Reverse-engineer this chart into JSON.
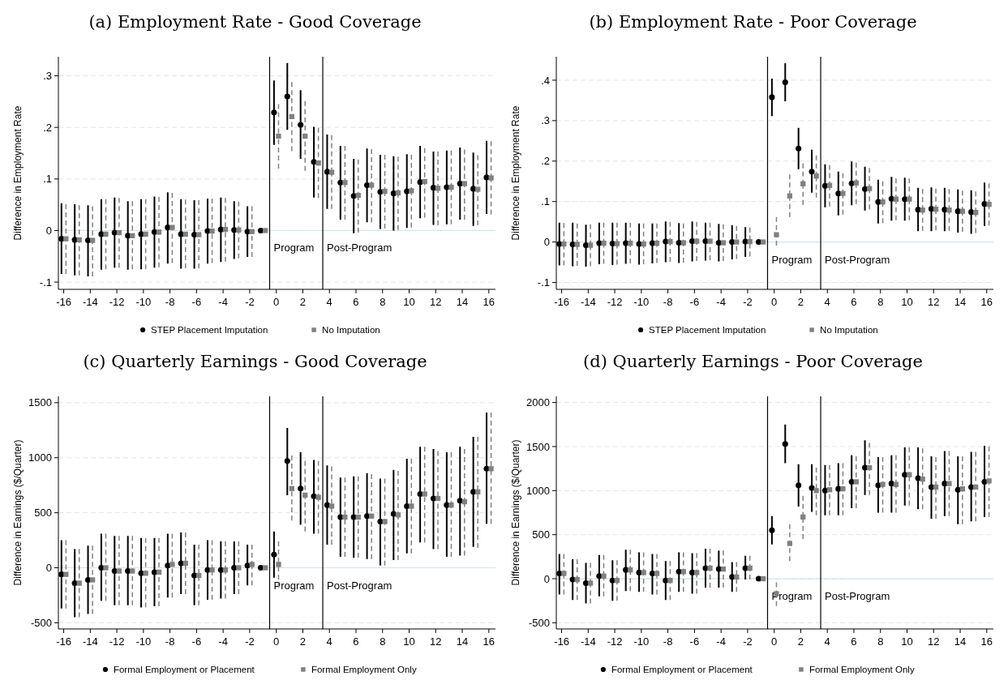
{
  "chart_data": [
    {
      "type": "scatter",
      "title": "(a) Employment Rate - Good Coverage",
      "ylabel": "Difference in Employment Rate",
      "xlim": [
        -16.4,
        16.5
      ],
      "xticks": [
        -16,
        -14,
        -12,
        -10,
        -8,
        -6,
        -4,
        -2,
        0,
        2,
        4,
        6,
        8,
        10,
        12,
        14,
        16
      ],
      "ylim": [
        -0.114,
        0.337
      ],
      "yticks": [
        {
          "value": -0.1,
          "label": "-.1"
        },
        0,
        {
          "value": 0.1,
          "label": ".1"
        },
        {
          "value": 0.2,
          "label": ".2"
        },
        {
          "value": 0.3,
          "label": ".3"
        }
      ],
      "grid": "y",
      "legend": "bottom",
      "ref_lines": [
        {
          "axis": "y",
          "value": 0,
          "color": "#d6e4ec"
        },
        {
          "axis": "x",
          "value": -0.5,
          "label": "Program",
          "color": "#000000"
        },
        {
          "axis": "x",
          "value": 3.5,
          "label": "Post-Program",
          "color": "#000000"
        }
      ],
      "series": [
        {
          "name": "STEP Placement Imputation",
          "color": "#000000",
          "marker": "circle",
          "line_style": "solid",
          "x": [
            -16.17,
            -15.17,
            -14.17,
            -13.17,
            -12.17,
            -11.17,
            -10.17,
            -9.17,
            -8.17,
            -7.17,
            -6.17,
            -5.17,
            -4.17,
            -3.17,
            -2.17,
            -1.17,
            -0.17,
            0.83,
            1.83,
            2.83,
            3.83,
            4.83,
            5.83,
            6.83,
            7.83,
            8.83,
            9.83,
            10.83,
            11.83,
            12.83,
            13.83,
            14.83,
            15.83
          ],
          "values": [
            -0.016,
            -0.018,
            -0.019,
            -0.007,
            -0.004,
            -0.01,
            -0.007,
            -0.003,
            0.006,
            -0.007,
            -0.008,
            -0.001,
            0.002,
            0.001,
            -0.002,
            0,
            0.229,
            0.26,
            0.205,
            0.133,
            0.114,
            0.093,
            0.067,
            0.088,
            0.075,
            0.072,
            0.076,
            0.094,
            0.083,
            0.084,
            0.091,
            0.081,
            0.103
          ],
          "errors": [
            [
              -0.084,
              0.053
            ],
            [
              -0.087,
              0.051
            ],
            [
              -0.089,
              0.049
            ],
            [
              -0.076,
              0.061
            ],
            [
              -0.072,
              0.064
            ],
            [
              -0.076,
              0.057
            ],
            [
              -0.075,
              0.061
            ],
            [
              -0.072,
              0.066
            ],
            [
              -0.064,
              0.074
            ],
            [
              -0.074,
              0.061
            ],
            [
              -0.074,
              0.059
            ],
            [
              -0.064,
              0.062
            ],
            [
              -0.061,
              0.064
            ],
            [
              -0.055,
              0.057
            ],
            [
              -0.051,
              0.047
            ],
            null,
            [
              0.166,
              0.291
            ],
            [
              0.195,
              0.325
            ],
            [
              0.139,
              0.272
            ],
            [
              0.064,
              0.201
            ],
            [
              0.042,
              0.186
            ],
            [
              0.021,
              0.164
            ],
            [
              -0.005,
              0.139
            ],
            [
              0.016,
              0.159
            ],
            [
              0.003,
              0.147
            ],
            [
              0,
              0.144
            ],
            [
              0.005,
              0.148
            ],
            [
              0.024,
              0.164
            ],
            [
              0.011,
              0.153
            ],
            [
              0.012,
              0.155
            ],
            [
              0.021,
              0.161
            ],
            [
              0.009,
              0.151
            ],
            [
              0.032,
              0.174
            ]
          ]
        },
        {
          "name": "No Imputation",
          "color": "#808080",
          "marker": "square",
          "line_style": "dashed",
          "x": [
            -15.83,
            -14.83,
            -13.83,
            -12.83,
            -11.83,
            -10.83,
            -9.83,
            -8.83,
            -7.83,
            -6.83,
            -5.83,
            -4.83,
            -3.83,
            -2.83,
            -1.83,
            -0.83,
            0.17,
            1.17,
            2.17,
            3.17,
            4.17,
            5.17,
            6.17,
            7.17,
            8.17,
            9.17,
            10.17,
            11.17,
            12.17,
            13.17,
            14.17,
            15.17,
            16.17
          ],
          "values": [
            -0.016,
            -0.018,
            -0.019,
            -0.007,
            -0.004,
            -0.01,
            -0.007,
            -0.003,
            0.006,
            -0.007,
            -0.008,
            -0.001,
            0.002,
            0.001,
            -0.002,
            0,
            0.183,
            0.221,
            0.183,
            0.131,
            0.113,
            0.093,
            0.068,
            0.088,
            0.076,
            0.073,
            0.077,
            0.095,
            0.082,
            0.084,
            0.091,
            0.08,
            0.102
          ],
          "errors": [
            [
              -0.084,
              0.051
            ],
            [
              -0.087,
              0.049
            ],
            [
              -0.089,
              0.047
            ],
            [
              -0.075,
              0.061
            ],
            [
              -0.072,
              0.063
            ],
            [
              -0.075,
              0.057
            ],
            [
              -0.075,
              0.061
            ],
            [
              -0.071,
              0.065
            ],
            [
              -0.063,
              0.073
            ],
            [
              -0.073,
              0.06
            ],
            [
              -0.073,
              0.059
            ],
            [
              -0.063,
              0.062
            ],
            [
              -0.06,
              0.063
            ],
            [
              -0.054,
              0.056
            ],
            [
              -0.051,
              0.047
            ],
            null,
            [
              0.12,
              0.245
            ],
            [
              0.154,
              0.288
            ],
            [
              0.116,
              0.251
            ],
            [
              0.063,
              0.199
            ],
            [
              0.042,
              0.185
            ],
            [
              0.021,
              0.164
            ],
            [
              -0.004,
              0.138
            ],
            [
              0.016,
              0.158
            ],
            [
              0.004,
              0.147
            ],
            [
              0.001,
              0.143
            ],
            [
              0.006,
              0.147
            ],
            [
              0.025,
              0.16
            ],
            [
              0.01,
              0.153
            ],
            [
              0.012,
              0.155
            ],
            [
              0.021,
              0.157
            ],
            [
              0.01,
              0.146
            ],
            [
              0.031,
              0.173
            ]
          ]
        }
      ]
    },
    {
      "type": "scatter",
      "title": "(b) Employment Rate - Poor Coverage",
      "ylabel": "Difference in Employment Rate",
      "xlim": [
        -16.4,
        16.5
      ],
      "xticks": [
        -16,
        -14,
        -12,
        -10,
        -8,
        -6,
        -4,
        -2,
        0,
        2,
        4,
        6,
        8,
        10,
        12,
        14,
        16
      ],
      "ylim": [
        -0.117,
        0.458
      ],
      "yticks": [
        {
          "value": -0.1,
          "label": "-.1"
        },
        0,
        {
          "value": 0.1,
          "label": ".1"
        },
        {
          "value": 0.2,
          "label": ".2"
        },
        {
          "value": 0.3,
          "label": ".3"
        },
        {
          "value": 0.4,
          "label": ".4"
        }
      ],
      "grid": "y",
      "legend": "bottom",
      "ref_lines": [
        {
          "axis": "y",
          "value": 0,
          "color": "#d6e4ec"
        },
        {
          "axis": "x",
          "value": -0.5,
          "label": "Program",
          "color": "#000000"
        },
        {
          "axis": "x",
          "value": 3.5,
          "label": "Post-Program",
          "color": "#000000"
        }
      ],
      "series": [
        {
          "name": "STEP Placement Imputation",
          "color": "#000000",
          "marker": "circle",
          "line_style": "solid",
          "x": [
            -16.17,
            -15.17,
            -14.17,
            -13.17,
            -12.17,
            -11.17,
            -10.17,
            -9.17,
            -8.17,
            -7.17,
            -6.17,
            -5.17,
            -4.17,
            -3.17,
            -2.17,
            -1.17,
            -0.17,
            0.83,
            1.83,
            2.83,
            3.83,
            4.83,
            5.83,
            6.83,
            7.83,
            8.83,
            9.83,
            10.83,
            11.83,
            12.83,
            13.83,
            14.83,
            15.83
          ],
          "values": [
            -0.005,
            -0.006,
            -0.008,
            -0.003,
            -0.004,
            -0.003,
            -0.005,
            -0.003,
            0.001,
            -0.002,
            0.002,
            0.002,
            -0.002,
            0,
            0.001,
            0,
            0.358,
            0.395,
            0.231,
            0.174,
            0.139,
            0.12,
            0.145,
            0.131,
            0.099,
            0.107,
            0.106,
            0.08,
            0.082,
            0.08,
            0.076,
            0.074,
            0.094
          ],
          "errors": [
            [
              -0.058,
              0.048
            ],
            [
              -0.06,
              0.048
            ],
            [
              -0.061,
              0.043
            ],
            [
              -0.055,
              0.048
            ],
            [
              -0.057,
              0.048
            ],
            [
              -0.054,
              0.048
            ],
            [
              -0.056,
              0.046
            ],
            [
              -0.053,
              0.046
            ],
            [
              -0.05,
              0.051
            ],
            [
              -0.052,
              0.047
            ],
            [
              -0.048,
              0.051
            ],
            [
              -0.046,
              0.048
            ],
            [
              -0.048,
              0.045
            ],
            [
              -0.043,
              0.042
            ],
            [
              -0.037,
              0.037
            ],
            null,
            [
              0.311,
              0.404
            ],
            [
              0.348,
              0.442
            ],
            [
              0.18,
              0.282
            ],
            [
              0.122,
              0.228
            ],
            [
              0.086,
              0.192
            ],
            [
              0.066,
              0.174
            ],
            [
              0.091,
              0.199
            ],
            [
              0.078,
              0.186
            ],
            [
              0.046,
              0.154
            ],
            [
              0.053,
              0.161
            ],
            [
              0.053,
              0.159
            ],
            [
              0.027,
              0.134
            ],
            [
              0.027,
              0.135
            ],
            [
              0.027,
              0.134
            ],
            [
              0.023,
              0.13
            ],
            [
              0.02,
              0.128
            ],
            [
              0.04,
              0.147
            ]
          ]
        },
        {
          "name": "No Imputation",
          "color": "#808080",
          "marker": "square",
          "line_style": "dashed",
          "x": [
            -15.83,
            -14.83,
            -13.83,
            -12.83,
            -11.83,
            -10.83,
            -9.83,
            -8.83,
            -7.83,
            -6.83,
            -5.83,
            -4.83,
            -3.83,
            -2.83,
            -1.83,
            -0.83,
            0.17,
            1.17,
            2.17,
            3.17,
            4.17,
            5.17,
            6.17,
            7.17,
            8.17,
            9.17,
            10.17,
            11.17,
            12.17,
            13.17,
            14.17,
            15.17,
            16.17
          ],
          "values": [
            -0.005,
            -0.006,
            -0.008,
            -0.003,
            -0.004,
            -0.003,
            -0.005,
            -0.003,
            0.001,
            -0.002,
            0.002,
            0.002,
            -0.002,
            0,
            0.001,
            0,
            0.018,
            0.114,
            0.144,
            0.163,
            0.14,
            0.12,
            0.146,
            0.132,
            0.099,
            0.106,
            0.106,
            0.079,
            0.081,
            0.079,
            0.076,
            0.073,
            0.093
          ],
          "errors": [
            [
              -0.058,
              0.047
            ],
            [
              -0.059,
              0.046
            ],
            [
              -0.06,
              0.044
            ],
            [
              -0.054,
              0.048
            ],
            [
              -0.056,
              0.048
            ],
            [
              -0.053,
              0.048
            ],
            [
              -0.055,
              0.046
            ],
            [
              -0.052,
              0.046
            ],
            [
              -0.049,
              0.05
            ],
            [
              -0.051,
              0.046
            ],
            [
              -0.047,
              0.05
            ],
            [
              -0.045,
              0.048
            ],
            [
              -0.047,
              0.044
            ],
            [
              -0.042,
              0.04
            ],
            [
              -0.036,
              0.036
            ],
            null,
            [
              -0.009,
              0.062
            ],
            [
              0.062,
              0.167
            ],
            [
              0.092,
              0.194
            ],
            [
              0.11,
              0.214
            ],
            [
              0.088,
              0.19
            ],
            [
              0.068,
              0.17
            ],
            [
              0.094,
              0.196
            ],
            [
              0.081,
              0.183
            ],
            [
              0.047,
              0.15
            ],
            [
              0.054,
              0.157
            ],
            [
              0.054,
              0.157
            ],
            [
              0.028,
              0.131
            ],
            [
              0.029,
              0.132
            ],
            [
              0.028,
              0.131
            ],
            [
              0.025,
              0.127
            ],
            [
              0.022,
              0.125
            ],
            [
              0.041,
              0.145
            ]
          ]
        }
      ]
    },
    {
      "type": "scatter",
      "title": "(c) Quarterly Earnings - Good Coverage",
      "ylabel": "Difference in Earnings ($/Quarter)",
      "xlim": [
        -16.4,
        16.5
      ],
      "xticks": [
        -16,
        -14,
        -12,
        -10,
        -8,
        -6,
        -4,
        -2,
        0,
        2,
        4,
        6,
        8,
        10,
        12,
        14,
        16
      ],
      "ylim": [
        -556,
        1558
      ],
      "yticks": [
        -500,
        0,
        500,
        1000,
        1500
      ],
      "grid": "y",
      "legend": "bottom",
      "ref_lines": [
        {
          "axis": "y",
          "value": 0,
          "color": "#d6e4ec"
        },
        {
          "axis": "x",
          "value": -0.5,
          "label": "Program",
          "color": "#000000"
        },
        {
          "axis": "x",
          "value": 3.5,
          "label": "Post-Program",
          "color": "#000000"
        }
      ],
      "series": [
        {
          "name": "Formal Employment or Placement",
          "color": "#000000",
          "marker": "circle",
          "line_style": "solid",
          "x": [
            -16.17,
            -15.17,
            -14.17,
            -13.17,
            -12.17,
            -11.17,
            -10.17,
            -9.17,
            -8.17,
            -7.17,
            -6.17,
            -5.17,
            -4.17,
            -3.17,
            -2.17,
            -1.17,
            -0.17,
            0.83,
            1.83,
            2.83,
            3.83,
            4.83,
            5.83,
            6.83,
            7.83,
            8.83,
            9.83,
            10.83,
            11.83,
            12.83,
            13.83,
            14.83,
            15.83
          ],
          "values": [
            -60,
            -140,
            -110,
            0,
            -30,
            -30,
            -50,
            -40,
            20,
            40,
            -70,
            -20,
            -20,
            0,
            20,
            0,
            120,
            970,
            720,
            650,
            570,
            460,
            460,
            470,
            420,
            490,
            560,
            670,
            630,
            570,
            610,
            690,
            900
          ],
          "errors": [
            [
              -370,
              250
            ],
            [
              -450,
              170
            ],
            [
              -420,
              200
            ],
            [
              -300,
              310
            ],
            [
              -340,
              290
            ],
            [
              -340,
              290
            ],
            [
              -360,
              270
            ],
            [
              -350,
              270
            ],
            [
              -270,
              310
            ],
            [
              -240,
              320
            ],
            [
              -340,
              210
            ],
            [
              -290,
              250
            ],
            [
              -280,
              240
            ],
            [
              -240,
              240
            ],
            [
              -160,
              210
            ],
            null,
            [
              -90,
              330
            ],
            [
              660,
              1270
            ],
            [
              390,
              1050
            ],
            [
              310,
              980
            ],
            [
              210,
              930
            ],
            [
              100,
              820
            ],
            [
              90,
              830
            ],
            [
              80,
              860
            ],
            [
              20,
              810
            ],
            [
              70,
              890
            ],
            [
              130,
              990
            ],
            [
              230,
              1100
            ],
            [
              170,
              1080
            ],
            [
              100,
              1050
            ],
            [
              110,
              1100
            ],
            [
              190,
              1190
            ],
            [
              400,
              1410
            ]
          ]
        },
        {
          "name": "Formal Employment Only",
          "color": "#808080",
          "marker": "square",
          "line_style": "dashed",
          "x": [
            -15.83,
            -14.83,
            -13.83,
            -12.83,
            -11.83,
            -10.83,
            -9.83,
            -8.83,
            -7.83,
            -6.83,
            -5.83,
            -4.83,
            -3.83,
            -2.83,
            -1.83,
            -0.83,
            0.17,
            1.17,
            2.17,
            3.17,
            4.17,
            5.17,
            6.17,
            7.17,
            8.17,
            9.17,
            10.17,
            11.17,
            12.17,
            13.17,
            14.17,
            15.17,
            16.17
          ],
          "values": [
            -60,
            -140,
            -110,
            0,
            -30,
            -30,
            -50,
            -40,
            30,
            40,
            -70,
            -20,
            -20,
            0,
            30,
            0,
            30,
            720,
            660,
            640,
            560,
            460,
            460,
            470,
            420,
            480,
            560,
            670,
            630,
            570,
            600,
            690,
            900
          ],
          "errors": [
            [
              -370,
              250
            ],
            [
              -450,
              170
            ],
            [
              -420,
              200
            ],
            [
              -300,
              310
            ],
            [
              -340,
              290
            ],
            [
              -340,
              290
            ],
            [
              -360,
              270
            ],
            [
              -350,
              270
            ],
            [
              -270,
              310
            ],
            [
              -240,
              320
            ],
            [
              -340,
              210
            ],
            [
              -290,
              250
            ],
            [
              -280,
              240
            ],
            [
              -240,
              240
            ],
            [
              -160,
              210
            ],
            null,
            [
              -180,
              240
            ],
            [
              430,
              1020
            ],
            [
              330,
              970
            ],
            [
              310,
              970
            ],
            [
              210,
              920
            ],
            [
              100,
              820
            ],
            [
              90,
              830
            ],
            [
              80,
              850
            ],
            [
              20,
              810
            ],
            [
              70,
              880
            ],
            [
              130,
              990
            ],
            [
              230,
              1100
            ],
            [
              170,
              1060
            ],
            [
              100,
              1050
            ],
            [
              110,
              1080
            ],
            [
              180,
              1190
            ],
            [
              400,
              1410
            ]
          ]
        }
      ]
    },
    {
      "type": "scatter",
      "title": "(d) Quarterly Earnings - Poor Coverage",
      "ylabel": "Difference in Earnings ($/Quarter)",
      "xlim": [
        -16.4,
        16.5
      ],
      "xticks": [
        -16,
        -14,
        -12,
        -10,
        -8,
        -6,
        -4,
        -2,
        0,
        2,
        4,
        6,
        8,
        10,
        12,
        14,
        16
      ],
      "ylim": [
        -570,
        2070
      ],
      "yticks": [
        -500,
        0,
        500,
        1000,
        1500,
        2000
      ],
      "grid": "y",
      "legend": "bottom",
      "ref_lines": [
        {
          "axis": "y",
          "value": 0,
          "color": "#d6e4ec"
        },
        {
          "axis": "x",
          "value": -0.5,
          "label": "Program",
          "color": "#000000"
        },
        {
          "axis": "x",
          "value": 3.5,
          "label": "Post-Program",
          "color": "#000000"
        }
      ],
      "series": [
        {
          "name": "Formal Employment or Placement",
          "color": "#000000",
          "marker": "circle",
          "line_style": "solid",
          "x": [
            -16.17,
            -15.17,
            -14.17,
            -13.17,
            -12.17,
            -11.17,
            -10.17,
            -9.17,
            -8.17,
            -7.17,
            -6.17,
            -5.17,
            -4.17,
            -3.17,
            -2.17,
            -1.17,
            -0.17,
            0.83,
            1.83,
            2.83,
            3.83,
            4.83,
            5.83,
            6.83,
            7.83,
            8.83,
            9.83,
            10.83,
            11.83,
            12.83,
            13.83,
            14.83,
            15.83
          ],
          "values": [
            60,
            -10,
            -50,
            30,
            -20,
            100,
            70,
            60,
            -20,
            80,
            70,
            120,
            110,
            20,
            120,
            0,
            550,
            1530,
            1060,
            1030,
            1000,
            1020,
            1100,
            1260,
            1060,
            1080,
            1180,
            1140,
            1040,
            1080,
            1010,
            1040,
            1100
          ],
          "errors": [
            [
              -180,
              280
            ],
            [
              -240,
              220
            ],
            [
              -280,
              180
            ],
            [
              -200,
              270
            ],
            [
              -250,
              210
            ],
            [
              -140,
              330
            ],
            [
              -150,
              300
            ],
            [
              -180,
              280
            ],
            [
              -240,
              200
            ],
            [
              -150,
              300
            ],
            [
              -170,
              290
            ],
            [
              -100,
              340
            ],
            [
              -100,
              320
            ],
            [
              -150,
              190
            ],
            [
              -10,
              260
            ],
            null,
            [
              390,
              710
            ],
            [
              1310,
              1750
            ],
            [
              820,
              1300
            ],
            [
              760,
              1300
            ],
            [
              720,
              1290
            ],
            [
              720,
              1310
            ],
            [
              800,
              1400
            ],
            [
              950,
              1570
            ],
            [
              750,
              1380
            ],
            [
              750,
              1400
            ],
            [
              830,
              1490
            ],
            [
              790,
              1490
            ],
            [
              680,
              1390
            ],
            [
              710,
              1450
            ],
            [
              620,
              1390
            ],
            [
              650,
              1440
            ],
            [
              700,
              1510
            ]
          ]
        },
        {
          "name": "Formal Employment Only",
          "color": "#808080",
          "marker": "square",
          "line_style": "dashed",
          "x": [
            -15.83,
            -14.83,
            -13.83,
            -12.83,
            -11.83,
            -10.83,
            -9.83,
            -8.83,
            -7.83,
            -6.83,
            -5.83,
            -4.83,
            -3.83,
            -2.83,
            -1.83,
            -0.83,
            0.17,
            1.17,
            2.17,
            3.17,
            4.17,
            5.17,
            6.17,
            7.17,
            8.17,
            9.17,
            10.17,
            11.17,
            12.17,
            13.17,
            14.17,
            15.17,
            16.17
          ],
          "values": [
            60,
            -10,
            -50,
            30,
            -20,
            100,
            70,
            60,
            -20,
            80,
            70,
            120,
            110,
            20,
            120,
            0,
            -170,
            400,
            700,
            1000,
            1010,
            1020,
            1100,
            1260,
            1070,
            1070,
            1180,
            1130,
            1040,
            1080,
            1020,
            1040,
            1110
          ],
          "errors": [
            [
              -180,
              280
            ],
            [
              -240,
              220
            ],
            [
              -280,
              180
            ],
            [
              -200,
              270
            ],
            [
              -250,
              210
            ],
            [
              -140,
              330
            ],
            [
              -150,
              300
            ],
            [
              -180,
              280
            ],
            [
              -240,
              200
            ],
            [
              -150,
              300
            ],
            [
              -170,
              290
            ],
            [
              -100,
              340
            ],
            [
              -100,
              320
            ],
            [
              -150,
              190
            ],
            [
              -10,
              260
            ],
            null,
            [
              -310,
              -40
            ],
            [
              200,
              620
            ],
            [
              450,
              940
            ],
            [
              720,
              1260
            ],
            [
              720,
              1290
            ],
            [
              720,
              1310
            ],
            [
              800,
              1390
            ],
            [
              950,
              1540
            ],
            [
              750,
              1380
            ],
            [
              750,
              1400
            ],
            [
              830,
              1490
            ],
            [
              790,
              1480
            ],
            [
              680,
              1380
            ],
            [
              710,
              1450
            ],
            [
              620,
              1390
            ],
            [
              650,
              1440
            ],
            [
              700,
              1500
            ]
          ]
        }
      ]
    }
  ]
}
